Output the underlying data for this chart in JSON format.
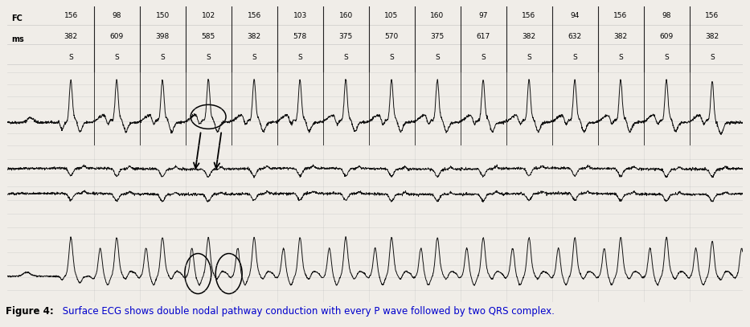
{
  "fig_width": 9.33,
  "fig_height": 4.07,
  "dpi": 100,
  "bg_color": "#f0ede8",
  "ecg_color": "#111111",
  "grid_color": "#bbbbbb",
  "columns": [
    {
      "fc": "156",
      "ms": "382",
      "s": "S"
    },
    {
      "fc": "98",
      "ms": "609",
      "s": "S"
    },
    {
      "fc": "150",
      "ms": "398",
      "s": "S"
    },
    {
      "fc": "102",
      "ms": "585",
      "s": "S"
    },
    {
      "fc": "156",
      "ms": "382",
      "s": "S"
    },
    {
      "fc": "103",
      "ms": "578",
      "s": "S"
    },
    {
      "fc": "160",
      "ms": "375",
      "s": "S"
    },
    {
      "fc": "105",
      "ms": "570",
      "s": "S"
    },
    {
      "fc": "160",
      "ms": "375",
      "s": "S"
    },
    {
      "fc": "97",
      "ms": "617",
      "s": "S"
    },
    {
      "fc": "156",
      "ms": "382",
      "s": "S"
    },
    {
      "fc": "94",
      "ms": "632",
      "s": "S"
    },
    {
      "fc": "156",
      "ms": "382",
      "s": "S"
    },
    {
      "fc": "98",
      "ms": "609",
      "s": "S"
    },
    {
      "fc": "156",
      "ms": "382",
      "s": "S"
    }
  ],
  "caption_bold": "Figure 4:",
  "caption_normal": " Surface ECG shows double nodal pathway conduction with every P wave followed by two QRS complex.",
  "caption_color": "#0000cc",
  "caption_bold_color": "#000000"
}
